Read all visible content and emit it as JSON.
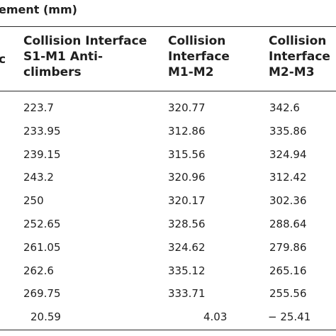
{
  "caption": "ement (mm)",
  "table": {
    "headers": [
      "c",
      "Collision Interface\nS1-M1 Anti-\nclimbers",
      "Collision\nInterface\nM1-M2",
      "Collision\nInterface\nM2-M3"
    ],
    "rows": [
      [
        "223.7",
        "320.77",
        "342.6"
      ],
      [
        "233.95",
        "312.86",
        "335.86"
      ],
      [
        "239.15",
        "315.56",
        "324.94"
      ],
      [
        "243.2",
        "320.96",
        "312.42"
      ],
      [
        "250",
        "320.17",
        "302.36"
      ],
      [
        "252.65",
        "328.56",
        "288.64"
      ],
      [
        "261.05",
        "324.62",
        "279.86"
      ],
      [
        "262.6",
        "335.12",
        "265.16"
      ],
      [
        "269.75",
        "333.71",
        "255.56"
      ],
      [
        "20.59",
        "4.03",
        "− 25.41"
      ]
    ]
  }
}
